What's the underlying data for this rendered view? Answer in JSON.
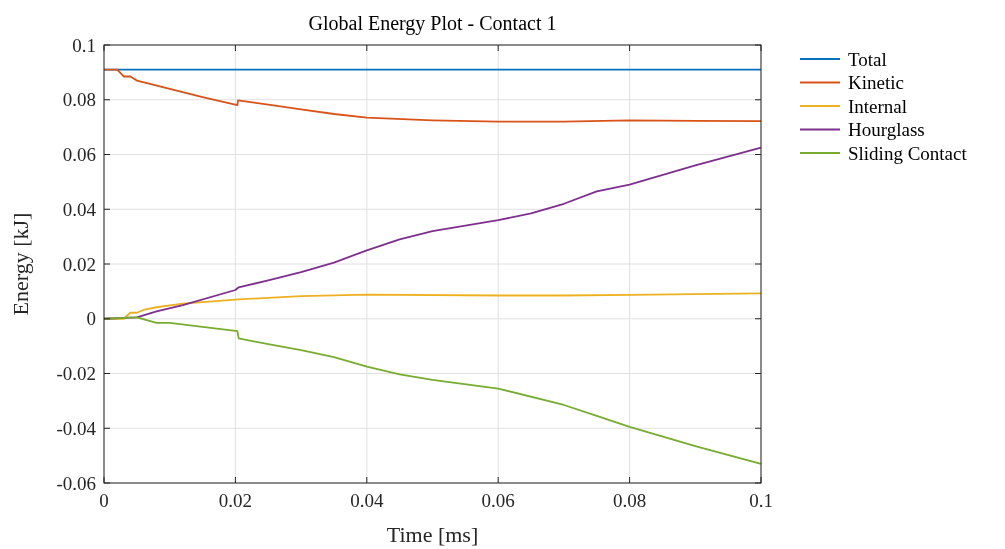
{
  "chart_data": {
    "type": "line",
    "title": "Global Energy Plot - Contact 1",
    "xlabel": "Time [ms]",
    "ylabel": "Energy [kJ]",
    "xlim": [
      0,
      0.1
    ],
    "xticks": [
      0,
      0.02,
      0.04,
      0.06,
      0.08,
      0.1
    ],
    "ylim": [
      -0.06,
      0.1
    ],
    "yticks": [
      -0.06,
      -0.04,
      -0.02,
      0,
      0.02,
      0.04,
      0.06,
      0.08,
      0.1
    ],
    "grid": true,
    "legend": "top right",
    "line_style": "solid",
    "marker": "none",
    "series": [
      {
        "name": "Total",
        "color": "#0072bd",
        "x": [
          0,
          0.1
        ],
        "values": [
          0.091,
          0.091
        ]
      },
      {
        "name": "Kinetic",
        "color": "#d95319",
        "x": [
          0,
          0.002,
          0.003,
          0.004,
          0.005,
          0.007,
          0.01,
          0.015,
          0.0203,
          0.0204,
          0.025,
          0.03,
          0.035,
          0.04,
          0.05,
          0.06,
          0.07,
          0.08,
          0.09,
          0.1
        ],
        "values": [
          0.091,
          0.091,
          0.0885,
          0.0885,
          0.087,
          0.0858,
          0.084,
          0.081,
          0.078,
          0.0798,
          0.0782,
          0.0765,
          0.0748,
          0.0735,
          0.0725,
          0.072,
          0.072,
          0.0725,
          0.0723,
          0.0722
        ]
      },
      {
        "name": "Internal",
        "color": "#edb120",
        "x": [
          0,
          0.003,
          0.004,
          0.005,
          0.006,
          0.008,
          0.012,
          0.02,
          0.03,
          0.04,
          0.06,
          0.07,
          0.08,
          0.09,
          0.1
        ],
        "values": [
          0,
          0,
          0.0022,
          0.0022,
          0.0032,
          0.0042,
          0.0055,
          0.007,
          0.0083,
          0.0088,
          0.0085,
          0.0085,
          0.0087,
          0.009,
          0.0093
        ]
      },
      {
        "name": "Hourglass",
        "color": "#7e2f8e",
        "x": [
          0,
          0.005,
          0.008,
          0.012,
          0.02,
          0.0205,
          0.025,
          0.03,
          0.035,
          0.04,
          0.045,
          0.05,
          0.06,
          0.065,
          0.07,
          0.075,
          0.08,
          0.09,
          0.1
        ],
        "values": [
          0,
          0.0005,
          0.0027,
          0.005,
          0.0105,
          0.0115,
          0.014,
          0.017,
          0.0205,
          0.025,
          0.029,
          0.032,
          0.036,
          0.0385,
          0.042,
          0.0465,
          0.049,
          0.056,
          0.0625
        ]
      },
      {
        "name": "Sliding Contact",
        "color": "#77ac30",
        "x": [
          0,
          0.005,
          0.008,
          0.01,
          0.015,
          0.0203,
          0.0205,
          0.025,
          0.03,
          0.035,
          0.04,
          0.045,
          0.05,
          0.06,
          0.07,
          0.075,
          0.08,
          0.09,
          0.1
        ],
        "values": [
          0,
          0.0005,
          -0.0015,
          -0.0015,
          -0.003,
          -0.0045,
          -0.0072,
          -0.0093,
          -0.0115,
          -0.014,
          -0.0175,
          -0.0203,
          -0.0223,
          -0.0255,
          -0.0315,
          -0.0355,
          -0.0395,
          -0.0465,
          -0.053
        ]
      }
    ]
  }
}
